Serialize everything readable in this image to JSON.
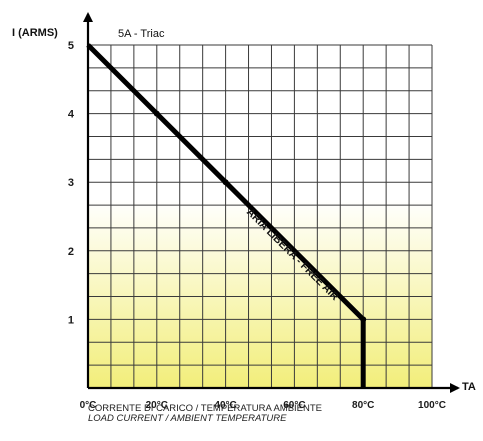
{
  "chart_data": {
    "type": "line",
    "title": "",
    "subtitle": "5A - Triac",
    "ylabel": "I (ARMS)",
    "xlabel": "TA",
    "x_tick_labels": [
      "0°C",
      "20°C",
      "40°C",
      "60°C",
      "80°C",
      "100°C"
    ],
    "y_tick_labels": [
      "1",
      "2",
      "3",
      "4",
      "5"
    ],
    "xlim": [
      0,
      100
    ],
    "ylim": [
      0,
      5
    ],
    "grid": true,
    "series": [
      {
        "name": "ARIA LIBERA - FREE AIR",
        "x": [
          0,
          20,
          40,
          80,
          80
        ],
        "y": [
          5,
          4,
          3,
          1,
          0
        ]
      }
    ],
    "annotation": "ARIA LIBERA - FREE AIR",
    "caption_line1": "CORRENTE DI CARICO / TEMPERATURA AMBIENTE",
    "caption_line2": "LOAD CURRENT / AMBIENT TEMPERATURE",
    "colors": {
      "line": "#000000",
      "grid": "#3a3a3a",
      "fill_top": "#ffffff",
      "fill_bottom": "#f2ee7a"
    }
  }
}
